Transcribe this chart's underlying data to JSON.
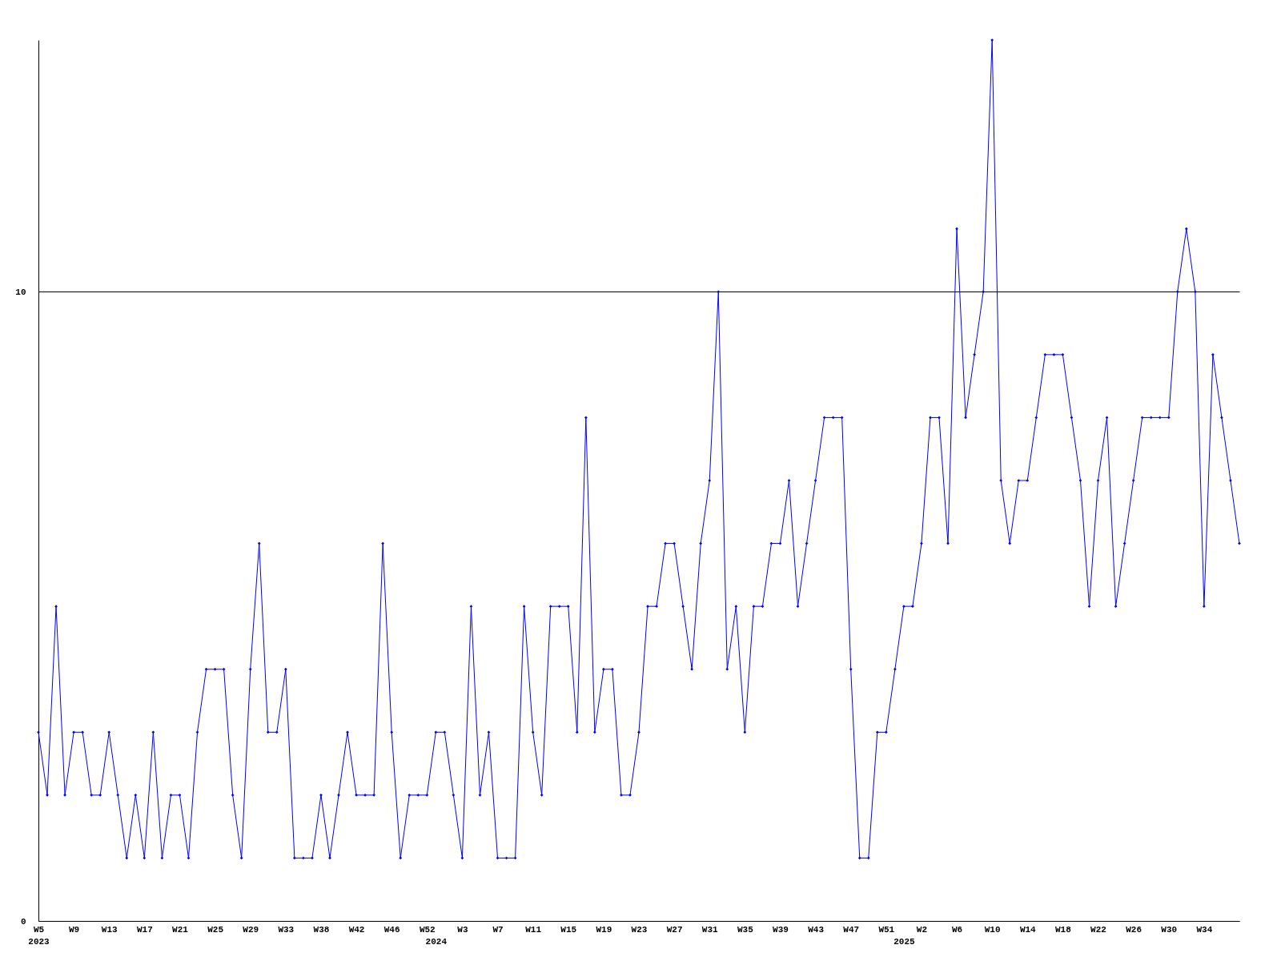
{
  "chart_data": {
    "type": "line",
    "categories": [
      "W5\n2023",
      null,
      null,
      null,
      "W9",
      null,
      null,
      null,
      "W13",
      null,
      null,
      null,
      "W17",
      null,
      null,
      null,
      "W21",
      null,
      null,
      null,
      "W25",
      null,
      null,
      null,
      "W29",
      null,
      null,
      null,
      "W33",
      null,
      null,
      null,
      "W38",
      null,
      null,
      null,
      "W42",
      null,
      null,
      null,
      "W46",
      null,
      null,
      null,
      "W52",
      "\n2024",
      null,
      null,
      "W3",
      null,
      null,
      null,
      "W7",
      null,
      null,
      null,
      "W11",
      null,
      null,
      null,
      "W15",
      null,
      null,
      null,
      "W19",
      null,
      null,
      null,
      "W23",
      null,
      null,
      null,
      "W27",
      null,
      null,
      null,
      "W31",
      null,
      null,
      null,
      "W35",
      null,
      null,
      null,
      "W39",
      null,
      null,
      null,
      "W43",
      null,
      null,
      null,
      "W47",
      null,
      null,
      null,
      "W51",
      null,
      "\n2025",
      null,
      "W2",
      null,
      null,
      null,
      "W6",
      null,
      null,
      null,
      "W10",
      null,
      null,
      null,
      "W14",
      null,
      null,
      null,
      "W18",
      null,
      null,
      null,
      "W22",
      null,
      null,
      null,
      "W26",
      null,
      null,
      null,
      "W30",
      null,
      null,
      null,
      "W34",
      null,
      null,
      null,
      null
    ],
    "series": [
      {
        "color": "#0000ff",
        "values": [
          3,
          2,
          5,
          2,
          3,
          3,
          2,
          2,
          3,
          2,
          1,
          2,
          1,
          3,
          1,
          2,
          2,
          1,
          3,
          4,
          4,
          4,
          2,
          1,
          4,
          6,
          3,
          3,
          4,
          1,
          1,
          1,
          2,
          1,
          2,
          3,
          2,
          2,
          2,
          6,
          3,
          1,
          2,
          2,
          2,
          3,
          3,
          2,
          1,
          5,
          2,
          3,
          1,
          1,
          1,
          5,
          3,
          2,
          5,
          5,
          5,
          3,
          8,
          3,
          4,
          4,
          2,
          2,
          3,
          5,
          5,
          6,
          6,
          5,
          4,
          6,
          7,
          10,
          4,
          5,
          3,
          5,
          5,
          6,
          6,
          7,
          5,
          6,
          7,
          8,
          8,
          8,
          4,
          1,
          1,
          3,
          3,
          4,
          5,
          5,
          6,
          8,
          8,
          6,
          11,
          8,
          9,
          10,
          14,
          7,
          6,
          7,
          7,
          8,
          9,
          9,
          9,
          8,
          7,
          5,
          7,
          8,
          5,
          6,
          7,
          8,
          8,
          8,
          8,
          10,
          11,
          10,
          5,
          9,
          8,
          7,
          6
        ]
      }
    ],
    "ylim": [
      0,
      14
    ],
    "yticks": [
      0,
      10
    ],
    "grid": "y",
    "marker": "diamond"
  }
}
